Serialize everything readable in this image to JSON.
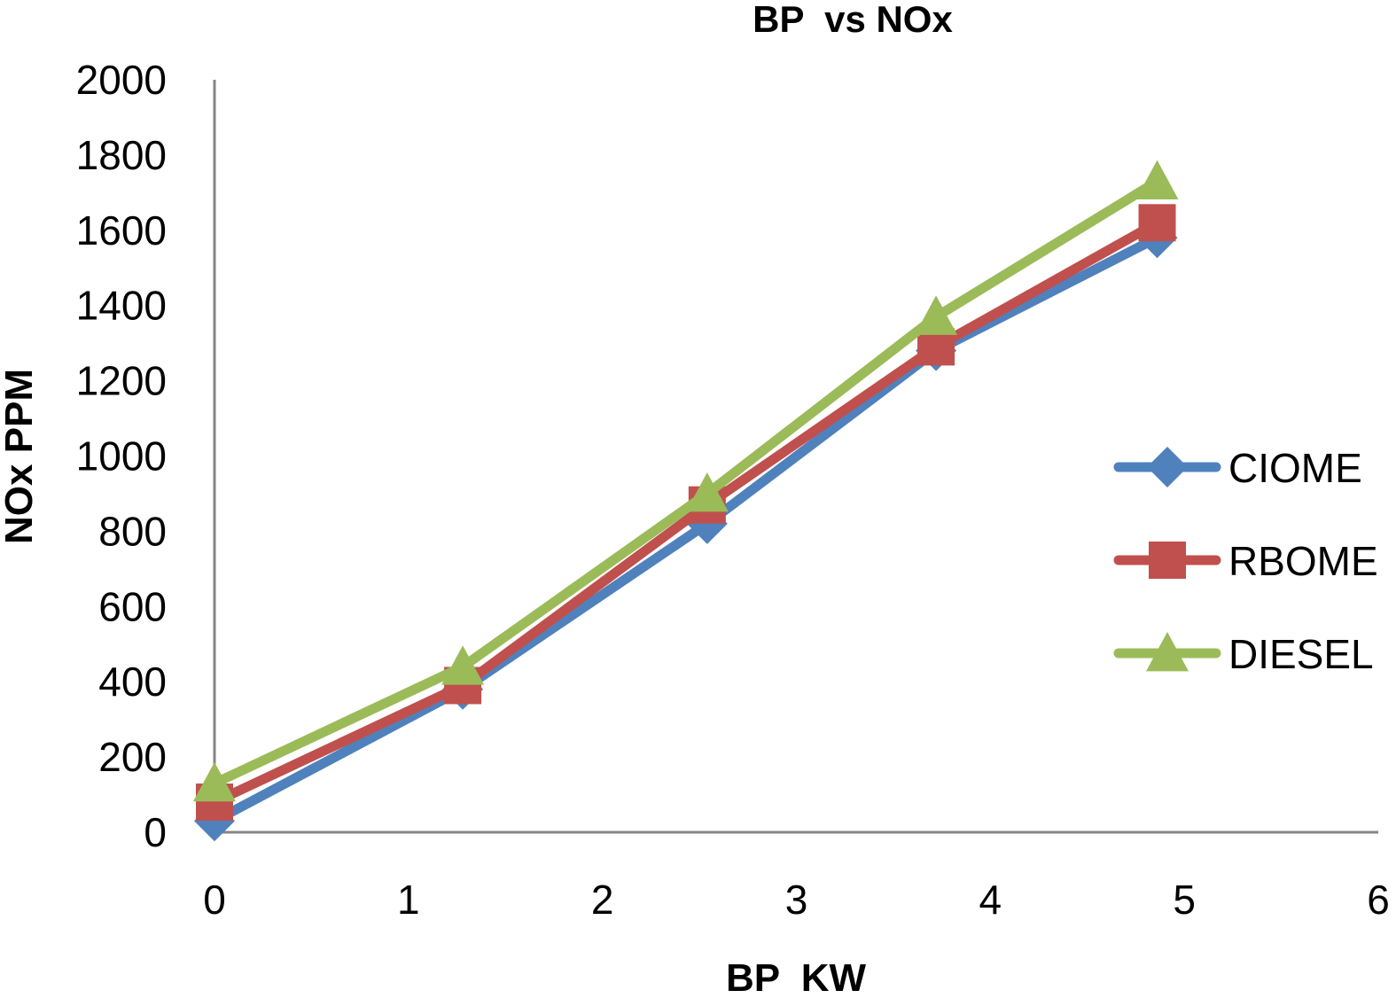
{
  "chart_data": {
    "type": "line",
    "title": "BP  vs NOx",
    "xlabel": "BP  KW",
    "ylabel": "NOx PPM",
    "xlim": [
      0,
      6
    ],
    "ylim": [
      0,
      2000
    ],
    "x_ticks": [
      0,
      1,
      2,
      3,
      4,
      5,
      6
    ],
    "y_ticks": [
      0,
      200,
      400,
      600,
      800,
      1000,
      1200,
      1400,
      1600,
      1800,
      2000
    ],
    "grid": false,
    "legend_position": "right",
    "x": [
      0,
      1.28,
      2.54,
      3.72,
      4.86
    ],
    "series": [
      {
        "name": "CIOME",
        "values": [
          30,
          380,
          820,
          1280,
          1580
        ],
        "color": "#4F81BD",
        "marker": "diamond"
      },
      {
        "name": "RBOME",
        "values": [
          80,
          390,
          870,
          1290,
          1620
        ],
        "color": "#C0504D",
        "marker": "square"
      },
      {
        "name": "DIESEL",
        "values": [
          130,
          440,
          900,
          1370,
          1730
        ],
        "color": "#9BBB59",
        "marker": "triangle"
      }
    ]
  }
}
